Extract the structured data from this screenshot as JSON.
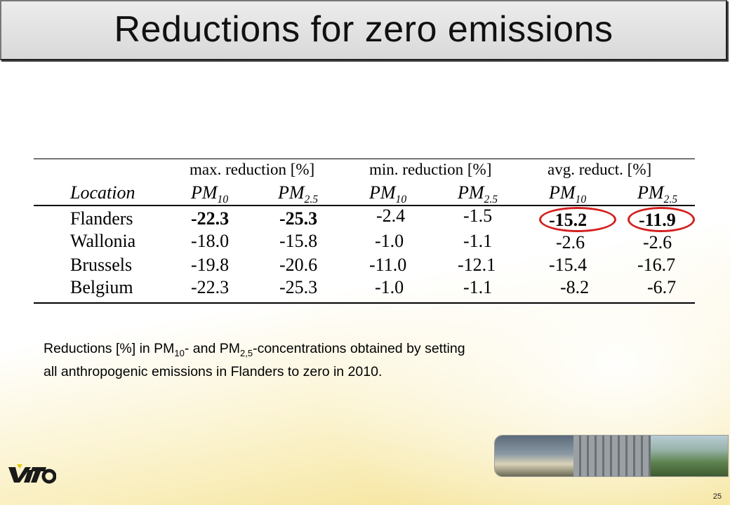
{
  "slide": {
    "title": "Reductions for zero emissions",
    "page_number": "25",
    "logo_text": "VITO"
  },
  "table": {
    "groups": [
      "max. reduction [%]",
      "min. reduction [%]",
      "avg. reduct. [%]"
    ],
    "location_header": "Location",
    "sub_headers": [
      {
        "base": "PM",
        "sub": "10"
      },
      {
        "base": "PM",
        "sub": "2.5"
      },
      {
        "base": "PM",
        "sub": "10"
      },
      {
        "base": "PM",
        "sub": "2.5"
      },
      {
        "base": "PM",
        "sub": "10"
      },
      {
        "base": "PM",
        "sub": "2.5"
      }
    ],
    "rows": [
      {
        "location": "Flanders",
        "values": [
          "-22.3",
          "-25.3",
          "-2.4",
          "-1.5",
          "-15.2",
          "-11.9"
        ]
      },
      {
        "location": "Wallonia",
        "values": [
          "-18.0",
          "-15.8",
          "-1.0",
          "-1.1",
          "-2.6",
          "-2.6"
        ]
      },
      {
        "location": "Brussels",
        "values": [
          "-19.8",
          "-20.6",
          "-11.0",
          "-12.1",
          "-15.4",
          "-16.7"
        ]
      },
      {
        "location": "Belgium",
        "values": [
          "-22.3",
          "-25.3",
          "-1.0",
          "-1.1",
          "-8.2",
          "-6.7"
        ]
      }
    ],
    "highlight_color": "#d42020"
  },
  "caption": {
    "part1": "Reductions [%] in PM",
    "sub1": "10",
    "part2": "- and PM",
    "sub2": "2,5",
    "part3": "-concentrations obtained by setting all anthropogenic emissions in Flanders to zero in 2010."
  }
}
